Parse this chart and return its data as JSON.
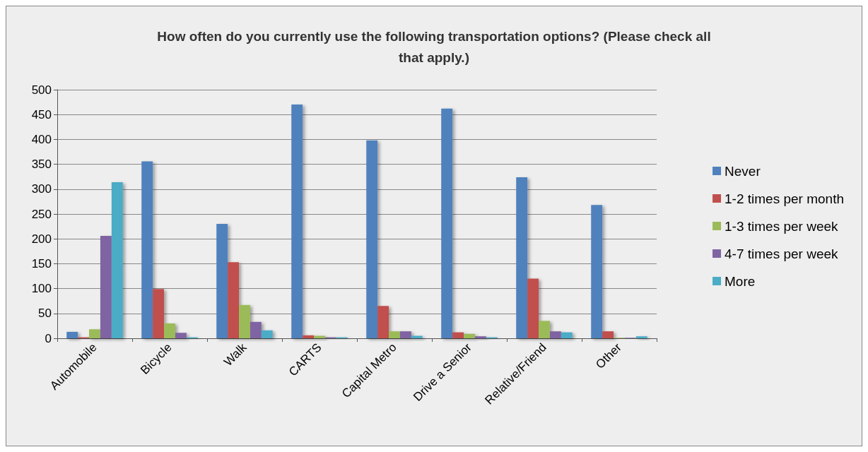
{
  "chart_data": {
    "type": "bar",
    "title": "How often do you currently use the following transportation options? (Please check all\nthat apply.)",
    "categories": [
      "Automobile",
      "Bicycle",
      "Walk",
      "CARTS",
      "Capital Metro",
      "Drive a Senior",
      "Relative/Friend",
      "Other"
    ],
    "series": [
      {
        "name": "Never",
        "color": "#4f81bd",
        "values": [
          13,
          356,
          230,
          470,
          398,
          462,
          324,
          268
        ]
      },
      {
        "name": "1-2 times per month",
        "color": "#c0504d",
        "values": [
          2,
          99,
          153,
          6,
          65,
          12,
          120,
          14
        ]
      },
      {
        "name": "1-3 times per week",
        "color": "#9bbb59",
        "values": [
          18,
          30,
          67,
          5,
          14,
          9,
          35,
          1
        ]
      },
      {
        "name": "4-7 times per week",
        "color": "#8064a2",
        "values": [
          206,
          11,
          33,
          2,
          14,
          4,
          14,
          1
        ]
      },
      {
        "name": "More",
        "color": "#4bacc6",
        "values": [
          314,
          2,
          16,
          2,
          5,
          2,
          12,
          4
        ]
      }
    ],
    "ylim": [
      0,
      500
    ],
    "yticks": [
      0,
      50,
      100,
      150,
      200,
      250,
      300,
      350,
      400,
      450,
      500
    ],
    "grid": "y",
    "legend": "right"
  }
}
